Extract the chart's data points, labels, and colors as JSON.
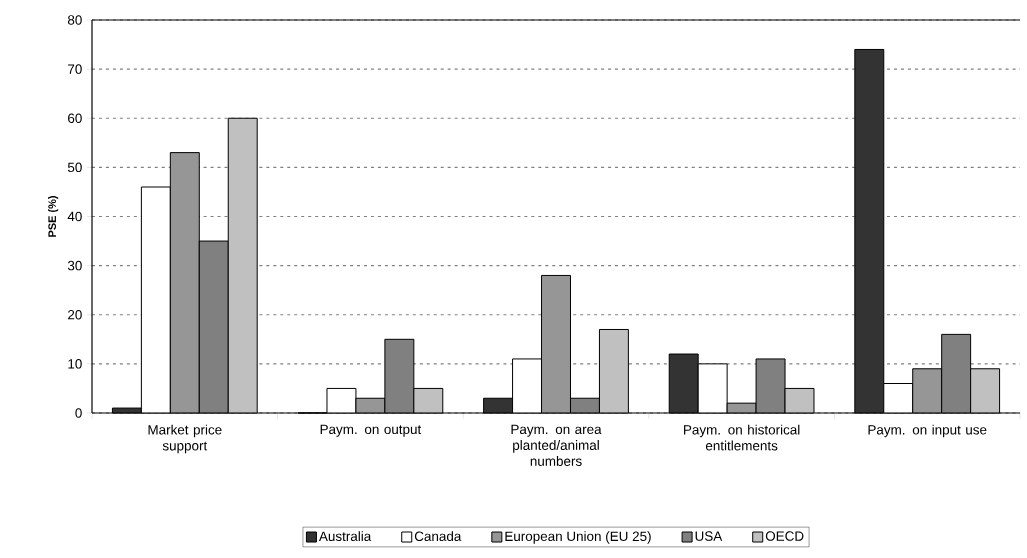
{
  "chart_data": {
    "type": "bar",
    "ylabel": "PSE (%)",
    "categories": [
      "Market price support",
      "Paym. on output",
      "Paym. on area planted/animal numbers",
      "Paym. on historical entitlements",
      "Paym. on input use"
    ],
    "series": [
      {
        "name": "Australia",
        "color": "#333333",
        "values": [
          1,
          0,
          3,
          12,
          74
        ]
      },
      {
        "name": "Canada",
        "color": "#ffffff",
        "values": [
          46,
          5,
          11,
          10,
          6
        ]
      },
      {
        "name": "European Union (EU 25)",
        "color": "#969696",
        "values": [
          53,
          3,
          28,
          2,
          9
        ]
      },
      {
        "name": "USA",
        "color": "#808080",
        "values": [
          35,
          15,
          3,
          11,
          16
        ]
      },
      {
        "name": "OECD",
        "color": "#c0c0c0",
        "values": [
          60,
          5,
          17,
          5,
          9
        ]
      }
    ],
    "ylim": [
      0,
      80
    ],
    "yticks": [
      0,
      10,
      20,
      30,
      40,
      50,
      60,
      70,
      80
    ],
    "grid": "y",
    "legend": "bottom"
  }
}
